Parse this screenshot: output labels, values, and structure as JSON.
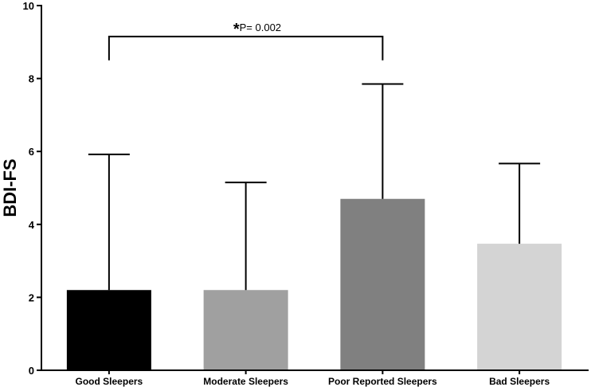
{
  "chart_data": {
    "type": "bar",
    "categories": [
      "Good Sleepers",
      "Moderate Sleepers",
      "Poor Reported Sleepers",
      "Bad Sleepers"
    ],
    "values": [
      2.2,
      2.2,
      4.7,
      3.47
    ],
    "error_upper": [
      5.92,
      5.15,
      7.85,
      5.67
    ],
    "colors": [
      "#000000",
      "#a0a0a0",
      "#808080",
      "#d4d4d4"
    ],
    "xlabel": "",
    "ylabel": "BDI-FS",
    "ylim": [
      0,
      10
    ],
    "yticks": [
      "0",
      "2",
      "4",
      "6",
      "8",
      "10"
    ],
    "grid": false,
    "legend": "none",
    "annotation": {
      "star": "*",
      "text": "P= 0.002",
      "from_category": 0,
      "to_category": 2,
      "level": 9.15,
      "drop_to": 8.5
    }
  }
}
